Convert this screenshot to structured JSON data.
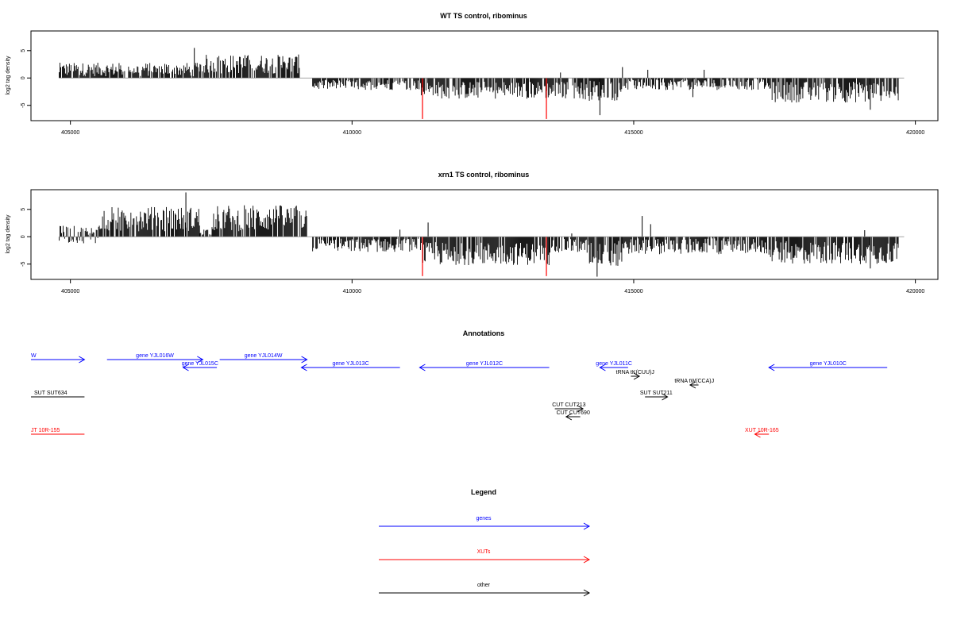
{
  "colors": {
    "bars": "#000000",
    "highlight": "#ff0000",
    "genes": "#0000ff",
    "xuts": "#ff0000",
    "other": "#000000",
    "axis": "#000000",
    "baseline": "#888888"
  },
  "chart_data": [
    {
      "type": "bar",
      "title": "WT TS control, ribominus",
      "ylabel": "log2 tag density",
      "xlim": [
        404300,
        420400
      ],
      "ylim": [
        -7.8,
        8.6
      ],
      "x_ticks": [
        405000,
        410000,
        415000,
        420000
      ],
      "x_tick_labels": [
        "405000",
        "410000",
        "415000",
        "420000"
      ],
      "y_ticks": [
        -5,
        0,
        5
      ],
      "y_tick_labels": [
        "-5",
        "0",
        "5"
      ],
      "grid": false,
      "density_segments": [
        {
          "x_start": 404800,
          "x_end": 407300,
          "y_min": 0.3,
          "y_max": 2.8
        },
        {
          "x_start": 407300,
          "x_end": 409100,
          "y_min": 0.8,
          "y_max": 4.3
        },
        {
          "x_start": 409300,
          "x_end": 411200,
          "y_min": -2.2,
          "y_max": -0.3
        },
        {
          "x_start": 411200,
          "x_end": 414100,
          "y_min": -3.8,
          "y_max": -0.6
        },
        {
          "x_start": 414100,
          "x_end": 414800,
          "y_min": -4.2,
          "y_max": -0.4
        },
        {
          "x_start": 414800,
          "x_end": 417400,
          "y_min": -2.2,
          "y_max": -0.2
        },
        {
          "x_start": 417400,
          "x_end": 419700,
          "y_min": -4.5,
          "y_max": -0.6
        }
      ],
      "highlight_bars": [
        {
          "x": 411250,
          "y": -7.5
        },
        {
          "x": 413450,
          "y": -7.5
        }
      ],
      "spikes": [
        {
          "x": 407200,
          "y": 5.5
        },
        {
          "x": 414400,
          "y": -6.8
        },
        {
          "x": 414800,
          "y": 2.0
        },
        {
          "x": 415250,
          "y": 1.5
        },
        {
          "x": 416050,
          "y": -3.5
        },
        {
          "x": 416250,
          "y": 1.5
        },
        {
          "x": 413700,
          "y": 1.0
        },
        {
          "x": 419200,
          "y": -5.8
        }
      ]
    },
    {
      "type": "bar",
      "title": "xrn1 TS control, ribominus",
      "ylabel": "log2 tag density",
      "xlim": [
        404300,
        420400
      ],
      "ylim": [
        -7.8,
        8.6
      ],
      "x_ticks": [
        405000,
        410000,
        415000,
        420000
      ],
      "x_tick_labels": [
        "405000",
        "410000",
        "415000",
        "420000"
      ],
      "y_ticks": [
        -5,
        0,
        5
      ],
      "y_tick_labels": [
        "-5",
        "0",
        "5"
      ],
      "grid": false,
      "density_segments": [
        {
          "x_start": 404800,
          "x_end": 405500,
          "y_min": -1.2,
          "y_max": 2.0
        },
        {
          "x_start": 405500,
          "x_end": 407300,
          "y_min": 1.0,
          "y_max": 5.5
        },
        {
          "x_start": 407300,
          "x_end": 407500,
          "y_min": 0.3,
          "y_max": 1.5
        },
        {
          "x_start": 407500,
          "x_end": 409200,
          "y_min": 1.0,
          "y_max": 5.8
        },
        {
          "x_start": 409300,
          "x_end": 411200,
          "y_min": -2.8,
          "y_max": -0.3
        },
        {
          "x_start": 411200,
          "x_end": 413500,
          "y_min": -5.2,
          "y_max": -1.0
        },
        {
          "x_start": 413500,
          "x_end": 414200,
          "y_min": -3.0,
          "y_max": -0.4
        },
        {
          "x_start": 414200,
          "x_end": 414800,
          "y_min": -5.5,
          "y_max": -0.6
        },
        {
          "x_start": 414800,
          "x_end": 417400,
          "y_min": -3.2,
          "y_max": -0.3
        },
        {
          "x_start": 417400,
          "x_end": 419700,
          "y_min": -5.0,
          "y_max": -0.8
        }
      ],
      "highlight_bars": [
        {
          "x": 411250,
          "y": -7.2
        },
        {
          "x": 413450,
          "y": -7.2
        }
      ],
      "spikes": [
        {
          "x": 407050,
          "y": 8.1
        },
        {
          "x": 411350,
          "y": 2.6
        },
        {
          "x": 414350,
          "y": -7.3
        },
        {
          "x": 415150,
          "y": 3.8
        },
        {
          "x": 415300,
          "y": 2.3
        },
        {
          "x": 410850,
          "y": 1.3
        },
        {
          "x": 413900,
          "y": 0.6
        },
        {
          "x": 419100,
          "y": 1.2
        },
        {
          "x": 419200,
          "y": -5.8
        }
      ]
    }
  ],
  "annotations": {
    "title": "Annotations",
    "xlim": [
      404300,
      420400
    ],
    "rows": 8,
    "items": [
      {
        "label": "W",
        "kind": "genes",
        "start": 404300,
        "end": 405250,
        "dir": "right",
        "row": 0
      },
      {
        "label": "gene YJL016W",
        "kind": "genes",
        "start": 405650,
        "end": 407350,
        "dir": "right",
        "row": 0
      },
      {
        "label": "gene YJL014W",
        "kind": "genes",
        "start": 407650,
        "end": 409200,
        "dir": "right",
        "row": 0
      },
      {
        "label": "gene YJL015C",
        "kind": "genes",
        "start": 407000,
        "end": 407600,
        "dir": "left",
        "row": 1
      },
      {
        "label": "gene YJL013C",
        "kind": "genes",
        "start": 409100,
        "end": 410850,
        "dir": "left",
        "row": 1
      },
      {
        "label": "gene YJL012C",
        "kind": "genes",
        "start": 411200,
        "end": 413500,
        "dir": "left",
        "row": 1
      },
      {
        "label": "gene YJL011C",
        "kind": "genes",
        "start": 414400,
        "end": 414900,
        "dir": "left",
        "row": 1
      },
      {
        "label": "gene YJL010C",
        "kind": "genes",
        "start": 417400,
        "end": 419500,
        "dir": "left",
        "row": 1
      },
      {
        "label": "tRNA tK(CUU)J",
        "kind": "other",
        "start": 414950,
        "end": 415100,
        "dir": "right",
        "row": 2
      },
      {
        "label": "tRNA tW(CCA)J",
        "kind": "other",
        "start": 416000,
        "end": 416150,
        "dir": "left",
        "row": 3
      },
      {
        "label": "SUT SUT211",
        "kind": "other",
        "start": 415200,
        "end": 415600,
        "dir": "right",
        "row": 4
      },
      {
        "label": "SUT SUT634",
        "kind": "other",
        "start": 404300,
        "end": 405250,
        "dir": "none",
        "row": 4
      },
      {
        "label": "CUT CUT213",
        "kind": "other",
        "start": 413600,
        "end": 414100,
        "dir": "right",
        "row": 5
      },
      {
        "label": "CUT CUT690",
        "kind": "other",
        "start": 413800,
        "end": 414050,
        "dir": "left",
        "row": 6
      },
      {
        "label": "JT 10R-155",
        "kind": "xuts",
        "start": 404300,
        "end": 405250,
        "dir": "none",
        "row": 7
      },
      {
        "label": "XUT 10R-165",
        "kind": "xuts",
        "start": 417150,
        "end": 417400,
        "dir": "left",
        "row": 7
      }
    ]
  },
  "legend": {
    "title": "Legend",
    "entries": [
      {
        "label": "genes",
        "kind": "genes"
      },
      {
        "label": "XUTs",
        "kind": "xuts"
      },
      {
        "label": "other",
        "kind": "other"
      }
    ]
  }
}
